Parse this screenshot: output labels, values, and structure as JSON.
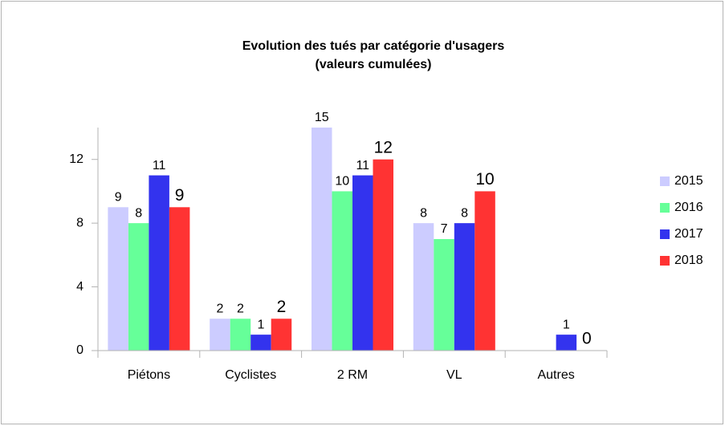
{
  "chart_data": {
    "type": "bar",
    "title": "Evolution des tués par catégorie d'usagers",
    "subtitle": "(valeurs cumulées)",
    "categories": [
      "Piétons",
      "Cyclistes",
      "2 RM",
      "VL",
      "Autres"
    ],
    "series": [
      {
        "name": "2015",
        "color": "#ccccff",
        "values": [
          9,
          2,
          15,
          8,
          null
        ]
      },
      {
        "name": "2016",
        "color": "#66ff99",
        "values": [
          8,
          2,
          10,
          7,
          null
        ]
      },
      {
        "name": "2017",
        "color": "#3333ee",
        "values": [
          11,
          1,
          11,
          8,
          1
        ]
      },
      {
        "name": "2018",
        "color": "#ff3333",
        "values": [
          9,
          2,
          12,
          10,
          0
        ]
      }
    ],
    "ylim": [
      0,
      14
    ],
    "yticks": [
      0,
      4,
      8,
      12
    ],
    "grid": false,
    "legend": "right"
  }
}
